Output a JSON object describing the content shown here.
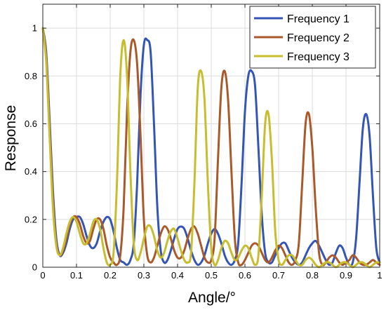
{
  "chart_data": {
    "type": "line",
    "title": "",
    "xlabel": "Angle/°",
    "ylabel": "Response",
    "xlim": [
      0,
      1
    ],
    "ylim": [
      0,
      1.1
    ],
    "grid": true,
    "legend_position": "top-right",
    "x_ticks": [
      0,
      0.1,
      0.2,
      0.3,
      0.4,
      0.5,
      0.6,
      0.7,
      0.8,
      0.9,
      1
    ],
    "x_tick_labels": [
      "0",
      "0.1",
      "0.2",
      "0.3",
      "0.4",
      "0.5",
      "0.6",
      "0.7",
      "0.8",
      "0.9",
      "1"
    ],
    "y_ticks": [
      0,
      0.2,
      0.4,
      0.6,
      0.8,
      1
    ],
    "y_tick_labels": [
      "0",
      "0.2",
      "0.4",
      "0.6",
      "0.8",
      "1"
    ],
    "series": [
      {
        "name": "Frequency 1",
        "color": "#3455b4",
        "x": [
          0.0,
          0.01,
          0.02,
          0.03,
          0.04,
          0.05,
          0.06,
          0.07,
          0.08,
          0.09,
          0.1,
          0.11,
          0.12,
          0.13,
          0.14,
          0.15,
          0.16,
          0.17,
          0.18,
          0.19,
          0.2,
          0.21,
          0.22,
          0.23,
          0.24,
          0.25,
          0.26,
          0.27,
          0.28,
          0.29,
          0.3,
          0.31,
          0.32,
          0.33,
          0.34,
          0.35,
          0.36,
          0.37,
          0.38,
          0.39,
          0.4,
          0.41,
          0.42,
          0.43,
          0.44,
          0.45,
          0.46,
          0.47,
          0.48,
          0.49,
          0.5,
          0.51,
          0.52,
          0.53,
          0.54,
          0.55,
          0.56,
          0.57,
          0.58,
          0.59,
          0.6,
          0.61,
          0.62,
          0.63,
          0.64,
          0.65,
          0.66,
          0.67,
          0.68,
          0.69,
          0.7,
          0.71,
          0.72,
          0.73,
          0.74,
          0.75,
          0.76,
          0.77,
          0.78,
          0.79,
          0.8,
          0.81,
          0.82,
          0.83,
          0.84,
          0.85,
          0.86,
          0.87,
          0.88,
          0.89,
          0.9,
          0.91,
          0.92,
          0.93,
          0.94,
          0.95,
          0.96,
          0.97,
          0.98,
          0.99,
          1.0
        ],
        "y": [
          1.0,
          0.9,
          0.62,
          0.32,
          0.12,
          0.05,
          0.06,
          0.1,
          0.16,
          0.2,
          0.21,
          0.21,
          0.18,
          0.13,
          0.09,
          0.08,
          0.1,
          0.15,
          0.19,
          0.21,
          0.2,
          0.15,
          0.08,
          0.03,
          0.02,
          0.01,
          0.03,
          0.1,
          0.35,
          0.72,
          0.93,
          0.95,
          0.9,
          0.6,
          0.25,
          0.07,
          0.02,
          0.03,
          0.07,
          0.12,
          0.16,
          0.17,
          0.16,
          0.12,
          0.07,
          0.03,
          0.01,
          0.02,
          0.05,
          0.1,
          0.14,
          0.16,
          0.14,
          0.1,
          0.05,
          0.02,
          0.01,
          0.03,
          0.1,
          0.35,
          0.65,
          0.8,
          0.82,
          0.76,
          0.5,
          0.22,
          0.06,
          0.02,
          0.02,
          0.05,
          0.08,
          0.1,
          0.1,
          0.07,
          0.04,
          0.02,
          0.01,
          0.02,
          0.05,
          0.08,
          0.1,
          0.11,
          0.09,
          0.06,
          0.03,
          0.01,
          0.02,
          0.06,
          0.09,
          0.08,
          0.04,
          0.01,
          0.02,
          0.12,
          0.35,
          0.58,
          0.64,
          0.55,
          0.3,
          0.08,
          0.02
        ]
      },
      {
        "name": "Frequency 2",
        "color": "#a9592a",
        "x": [
          0.0,
          0.01,
          0.02,
          0.03,
          0.04,
          0.05,
          0.06,
          0.07,
          0.08,
          0.09,
          0.1,
          0.11,
          0.12,
          0.13,
          0.14,
          0.15,
          0.16,
          0.17,
          0.18,
          0.19,
          0.2,
          0.21,
          0.22,
          0.23,
          0.24,
          0.25,
          0.26,
          0.27,
          0.28,
          0.29,
          0.3,
          0.31,
          0.32,
          0.33,
          0.34,
          0.35,
          0.36,
          0.37,
          0.38,
          0.39,
          0.4,
          0.41,
          0.42,
          0.43,
          0.44,
          0.45,
          0.46,
          0.47,
          0.48,
          0.49,
          0.5,
          0.51,
          0.52,
          0.53,
          0.54,
          0.55,
          0.56,
          0.57,
          0.58,
          0.59,
          0.6,
          0.61,
          0.62,
          0.63,
          0.64,
          0.65,
          0.66,
          0.67,
          0.68,
          0.69,
          0.7,
          0.71,
          0.72,
          0.73,
          0.74,
          0.75,
          0.76,
          0.77,
          0.78,
          0.79,
          0.8,
          0.81,
          0.82,
          0.83,
          0.84,
          0.85,
          0.86,
          0.87,
          0.88,
          0.89,
          0.9,
          0.91,
          0.92,
          0.93,
          0.94,
          0.95,
          0.96,
          0.97,
          0.98,
          0.99,
          1.0
        ],
        "y": [
          1.0,
          0.88,
          0.58,
          0.28,
          0.1,
          0.05,
          0.07,
          0.12,
          0.18,
          0.21,
          0.21,
          0.18,
          0.13,
          0.1,
          0.11,
          0.16,
          0.2,
          0.2,
          0.16,
          0.09,
          0.04,
          0.02,
          0.01,
          0.05,
          0.25,
          0.65,
          0.9,
          0.95,
          0.85,
          0.55,
          0.2,
          0.05,
          0.02,
          0.04,
          0.09,
          0.14,
          0.17,
          0.16,
          0.12,
          0.07,
          0.04,
          0.04,
          0.07,
          0.12,
          0.16,
          0.17,
          0.14,
          0.09,
          0.04,
          0.02,
          0.03,
          0.12,
          0.45,
          0.75,
          0.82,
          0.7,
          0.4,
          0.12,
          0.02,
          0.01,
          0.03,
          0.06,
          0.09,
          0.1,
          0.09,
          0.06,
          0.03,
          0.02,
          0.04,
          0.07,
          0.09,
          0.08,
          0.05,
          0.02,
          0.01,
          0.03,
          0.1,
          0.35,
          0.6,
          0.64,
          0.5,
          0.25,
          0.06,
          0.01,
          0.02,
          0.04,
          0.05,
          0.04,
          0.02,
          0.01,
          0.02,
          0.03,
          0.05,
          0.04,
          0.02,
          0.01,
          0.01,
          0.02,
          0.03,
          0.02,
          0.01
        ]
      },
      {
        "name": "Frequency 3",
        "color": "#c7bd2e",
        "x": [
          0.0,
          0.01,
          0.02,
          0.03,
          0.04,
          0.05,
          0.06,
          0.07,
          0.08,
          0.09,
          0.1,
          0.11,
          0.12,
          0.13,
          0.14,
          0.15,
          0.16,
          0.17,
          0.18,
          0.19,
          0.2,
          0.21,
          0.22,
          0.23,
          0.24,
          0.25,
          0.26,
          0.27,
          0.28,
          0.29,
          0.3,
          0.31,
          0.32,
          0.33,
          0.34,
          0.35,
          0.36,
          0.37,
          0.38,
          0.39,
          0.4,
          0.41,
          0.42,
          0.43,
          0.44,
          0.45,
          0.46,
          0.47,
          0.48,
          0.49,
          0.5,
          0.51,
          0.52,
          0.53,
          0.54,
          0.55,
          0.56,
          0.57,
          0.58,
          0.59,
          0.6,
          0.61,
          0.62,
          0.63,
          0.64,
          0.65,
          0.66,
          0.67,
          0.68,
          0.69,
          0.7,
          0.71,
          0.72,
          0.73,
          0.74,
          0.75,
          0.76,
          0.77,
          0.78,
          0.79,
          0.8,
          0.81,
          0.82,
          0.83,
          0.84,
          0.85,
          0.86,
          0.87,
          0.88,
          0.89,
          0.9,
          0.91,
          0.92,
          0.93,
          0.94,
          0.95,
          0.96,
          0.97,
          0.98,
          0.99,
          1.0
        ],
        "y": [
          1.0,
          0.86,
          0.55,
          0.25,
          0.09,
          0.05,
          0.08,
          0.14,
          0.19,
          0.21,
          0.19,
          0.14,
          0.1,
          0.1,
          0.14,
          0.19,
          0.2,
          0.16,
          0.08,
          0.02,
          0.01,
          0.06,
          0.35,
          0.8,
          0.95,
          0.8,
          0.4,
          0.1,
          0.03,
          0.06,
          0.12,
          0.17,
          0.17,
          0.13,
          0.07,
          0.04,
          0.06,
          0.11,
          0.15,
          0.16,
          0.12,
          0.07,
          0.03,
          0.02,
          0.06,
          0.35,
          0.75,
          0.82,
          0.7,
          0.35,
          0.08,
          0.01,
          0.03,
          0.08,
          0.11,
          0.1,
          0.06,
          0.03,
          0.04,
          0.07,
          0.09,
          0.08,
          0.04,
          0.01,
          0.05,
          0.3,
          0.6,
          0.64,
          0.45,
          0.15,
          0.03,
          0.01,
          0.03,
          0.05,
          0.05,
          0.03,
          0.01,
          0.01,
          0.03,
          0.04,
          0.03,
          0.01,
          0.0,
          0.01,
          0.02,
          0.02,
          0.01,
          0.0,
          0.01,
          0.02,
          0.02,
          0.01,
          0.0,
          0.01,
          0.02,
          0.02,
          0.01,
          0.0,
          0.01,
          0.02,
          0.02
        ]
      }
    ]
  }
}
